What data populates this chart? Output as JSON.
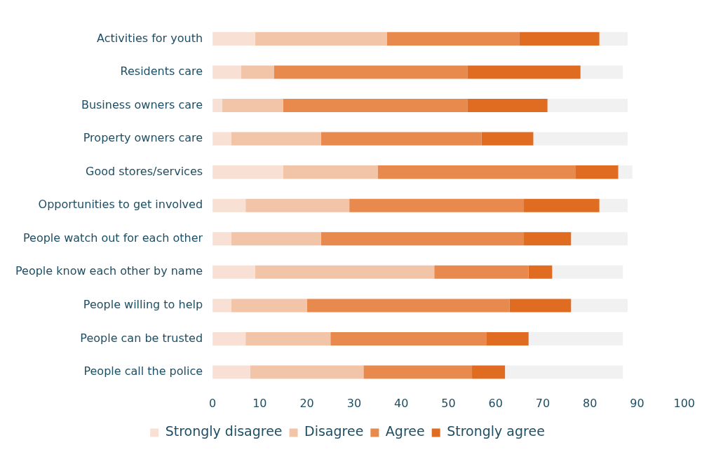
{
  "chart_data": {
    "type": "bar",
    "orientation": "horizontal",
    "stacked": true,
    "categories": [
      "Activities for youth",
      "Residents care",
      "Business owners care",
      "Property owners care",
      "Good stores/services",
      "Opportunities to get involved",
      "People watch out for each other",
      "People know each other by name",
      "People willing to help",
      "People can be trusted",
      "People call the police"
    ],
    "series": [
      {
        "name": "Strongly disagree",
        "color": "#f8e1d4",
        "values": [
          9,
          6,
          2,
          4,
          15,
          7,
          4,
          9,
          4,
          7,
          8
        ]
      },
      {
        "name": "Disagree",
        "color": "#f2c4a8",
        "values": [
          28,
          7,
          13,
          19,
          20,
          22,
          19,
          38,
          16,
          18,
          24
        ]
      },
      {
        "name": "Agree",
        "color": "#e8894e",
        "values": [
          28,
          41,
          39,
          34,
          42,
          37,
          43,
          20,
          43,
          33,
          23
        ]
      },
      {
        "name": "Strongly agree",
        "color": "#e06c22",
        "values": [
          17,
          24,
          17,
          11,
          9,
          16,
          10,
          5,
          13,
          9,
          7
        ]
      },
      {
        "color": "#f1f1f1",
        "values": [
          6,
          9,
          17,
          20,
          3,
          6,
          12,
          15,
          12,
          20,
          25
        ]
      }
    ],
    "xlim": [
      0,
      100
    ],
    "xticks": [
      0,
      10,
      20,
      30,
      40,
      50,
      60,
      70,
      80,
      90,
      100
    ],
    "grid": false,
    "legend": "bottom"
  }
}
